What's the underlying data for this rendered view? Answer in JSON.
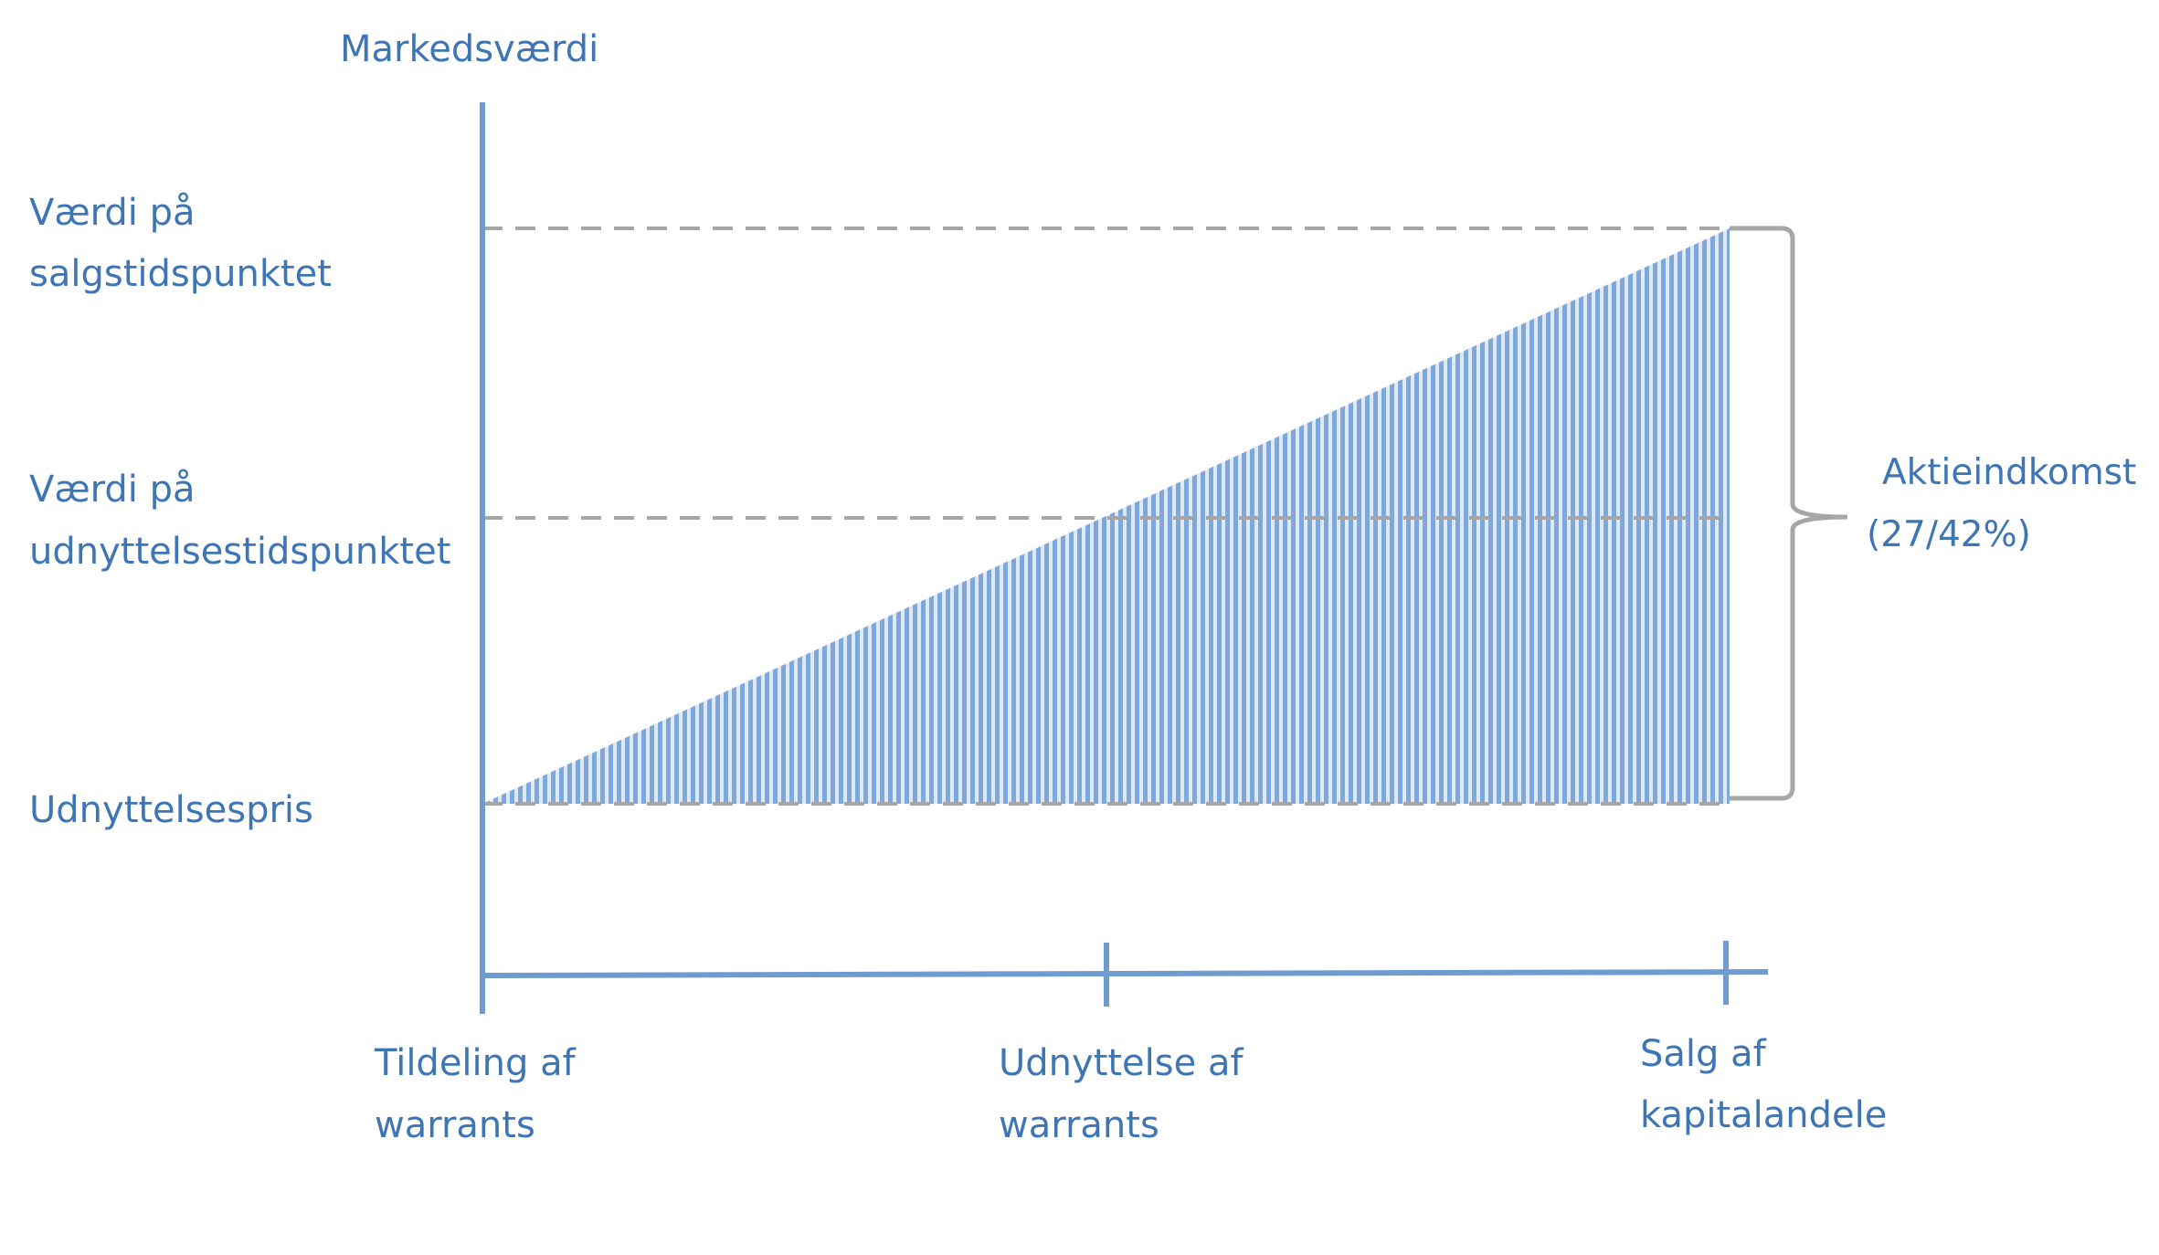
{
  "diagram": {
    "title": "Markedsværdi",
    "y_levels": {
      "sale": {
        "line1": "Værdi på",
        "line2": "salgstidspunktet"
      },
      "exercise": {
        "line1": "Værdi på",
        "line2": "udnyttelsestidspunktet"
      },
      "strike": {
        "line1": "Udnyttelsespris"
      }
    },
    "x_events": {
      "grant": {
        "line1": "Tildeling af",
        "line2": "warrants"
      },
      "exercise": {
        "line1": "Udnyttelse af",
        "line2": "warrants"
      },
      "sale": {
        "line1": "Salg af",
        "line2": "kapitalandele"
      }
    },
    "brace_label": {
      "line1": "Aktieindkomst",
      "line2": "(27/42%)"
    },
    "colors": {
      "axis": "#6f9bd0",
      "text": "#3e75b4",
      "dashed": "#a6a6a6",
      "fill_stripe": "#7ea7dc",
      "brace": "#a6a6a6"
    }
  }
}
